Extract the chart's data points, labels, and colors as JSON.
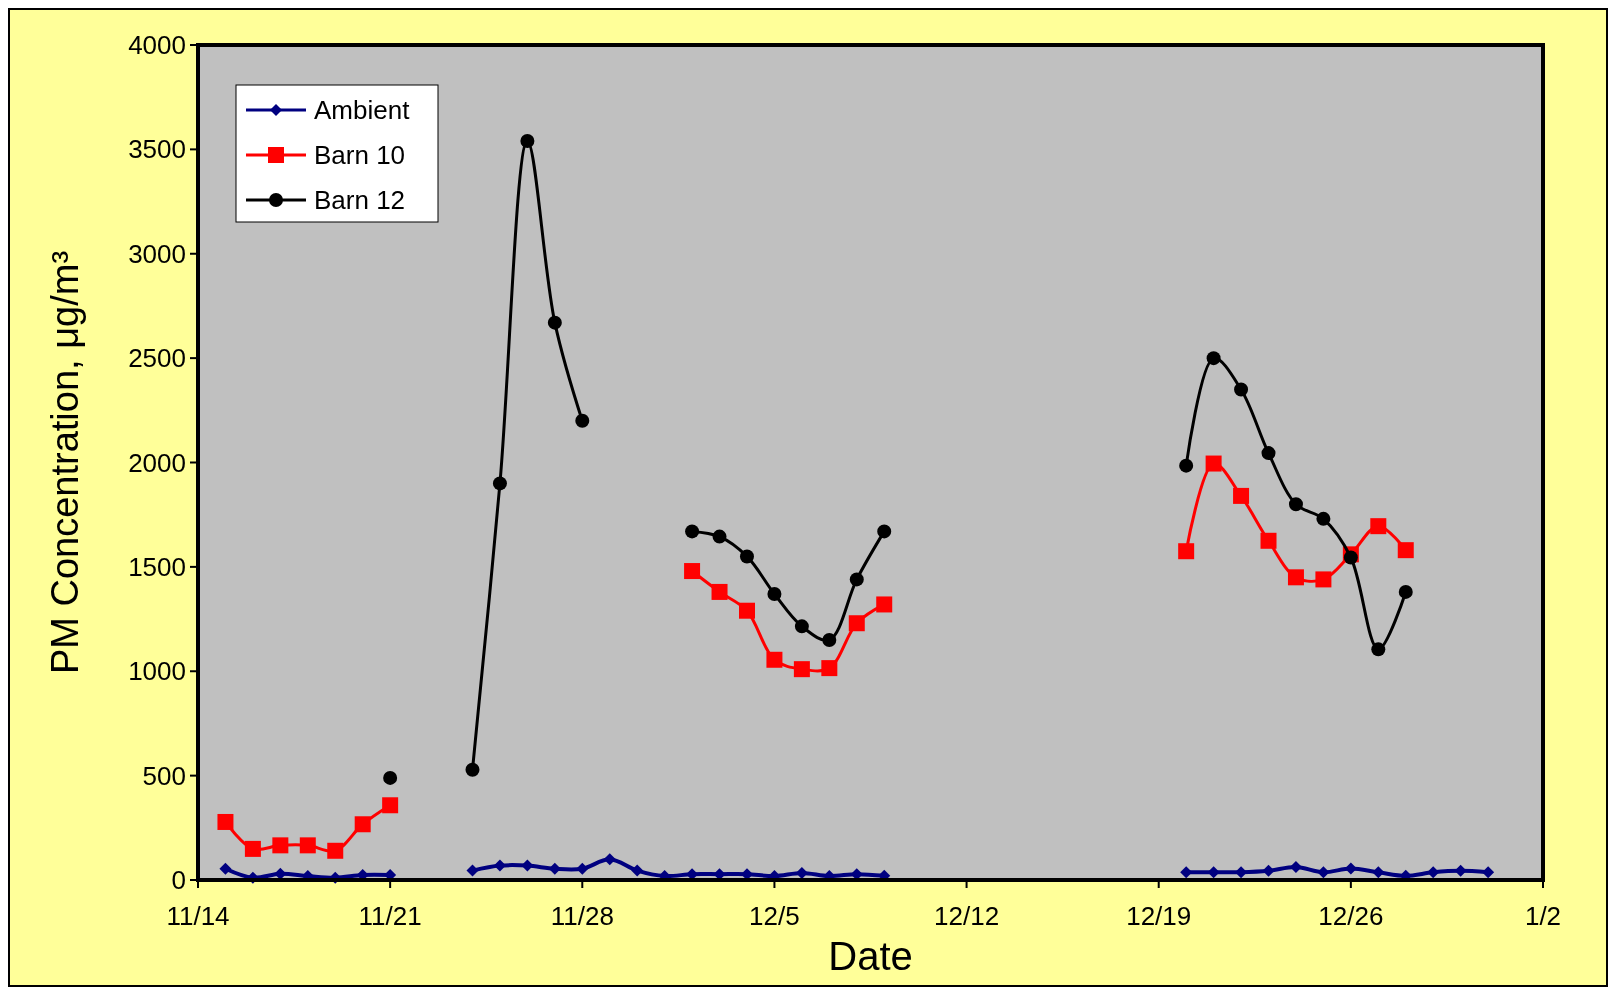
{
  "chart_data": {
    "type": "line",
    "xlabel": "Date",
    "ylabel": "PM Concentration, μg/m³",
    "categories": [
      "11/14",
      null,
      null,
      null,
      null,
      null,
      null,
      "11/21",
      null,
      null,
      null,
      null,
      null,
      null,
      "11/28",
      null,
      null,
      null,
      null,
      null,
      null,
      "12/5",
      null,
      null,
      null,
      null,
      null,
      null,
      "12/12",
      null,
      null,
      null,
      null,
      null,
      null,
      "12/19",
      null,
      null,
      null,
      null,
      null,
      null,
      "12/26",
      null,
      null,
      null,
      null,
      null,
      null,
      "1/2"
    ],
    "series": [
      {
        "name": "Ambient",
        "color": "#000080",
        "marker": "diamond",
        "values": [
          null,
          54,
          11,
          30,
          19,
          11,
          24,
          24,
          null,
          null,
          45,
          69,
          69,
          54,
          54,
          99,
          45,
          19,
          28,
          28,
          28,
          19,
          34,
          19,
          28,
          20,
          null,
          null,
          null,
          null,
          null,
          null,
          null,
          null,
          null,
          null,
          37,
          37,
          37,
          44,
          62,
          37,
          55,
          37,
          20,
          37,
          44,
          37,
          null,
          null
        ]
      },
      {
        "name": "Barn 10",
        "color": "#ff0000",
        "marker": "square",
        "values": [
          null,
          278,
          149,
          166,
          166,
          140,
          267,
          358,
          null,
          null,
          null,
          null,
          null,
          null,
          null,
          null,
          null,
          null,
          1480,
          1380,
          1290,
          1055,
          1010,
          1015,
          1230,
          1320,
          null,
          null,
          null,
          null,
          null,
          null,
          null,
          null,
          null,
          null,
          1575,
          1995,
          1840,
          1625,
          1450,
          1440,
          1560,
          1695,
          1580,
          null,
          null,
          null,
          null,
          null
        ]
      },
      {
        "name": "Barn 12",
        "color": "#000000",
        "marker": "circle",
        "values": [
          null,
          null,
          null,
          null,
          null,
          null,
          null,
          489,
          null,
          null,
          528,
          1900,
          3540,
          2670,
          2200,
          null,
          null,
          null,
          1670,
          1645,
          1550,
          1370,
          1215,
          1150,
          1440,
          1670,
          null,
          null,
          null,
          null,
          null,
          null,
          null,
          null,
          null,
          null,
          1985,
          2500,
          2350,
          2045,
          1800,
          1730,
          1545,
          1105,
          1380,
          null,
          null,
          null,
          null,
          null
        ]
      }
    ],
    "ylim": [
      0,
      4000
    ],
    "yticks": [
      0,
      500,
      1000,
      1500,
      2000,
      2500,
      3000,
      3500,
      4000
    ],
    "grid": false,
    "legend": "top left"
  }
}
